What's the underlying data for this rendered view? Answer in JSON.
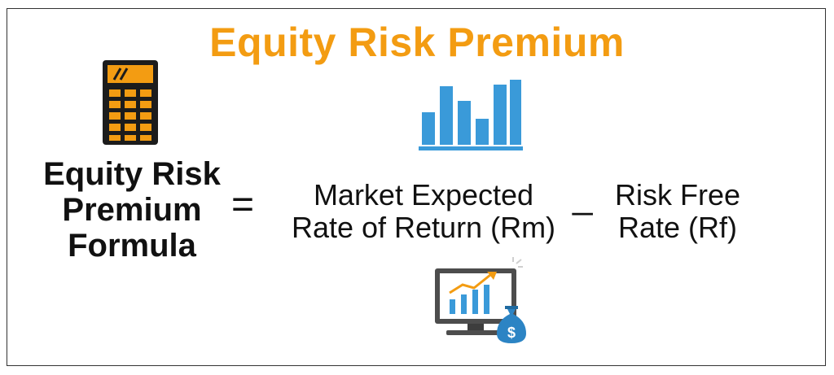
{
  "title": "Equity Risk Premium",
  "formula": {
    "lhs_lines": [
      "Equity Risk",
      "Premium",
      "Formula"
    ],
    "equals": "=",
    "term1_lines": [
      "Market Expected",
      "Rate of Return (Rm)"
    ],
    "operator": "_",
    "term2_lines": [
      "Risk Free",
      "Rate (Rf)"
    ]
  },
  "icons": {
    "calculator": "calculator-icon",
    "bar_chart": "bar-chart-icon",
    "monitor": "monitor-growth-money-bag-icon",
    "currency_symbol": "$"
  },
  "colors": {
    "title": "#f39c12",
    "accent_blue": "#3a9ad9",
    "text": "#111111"
  }
}
